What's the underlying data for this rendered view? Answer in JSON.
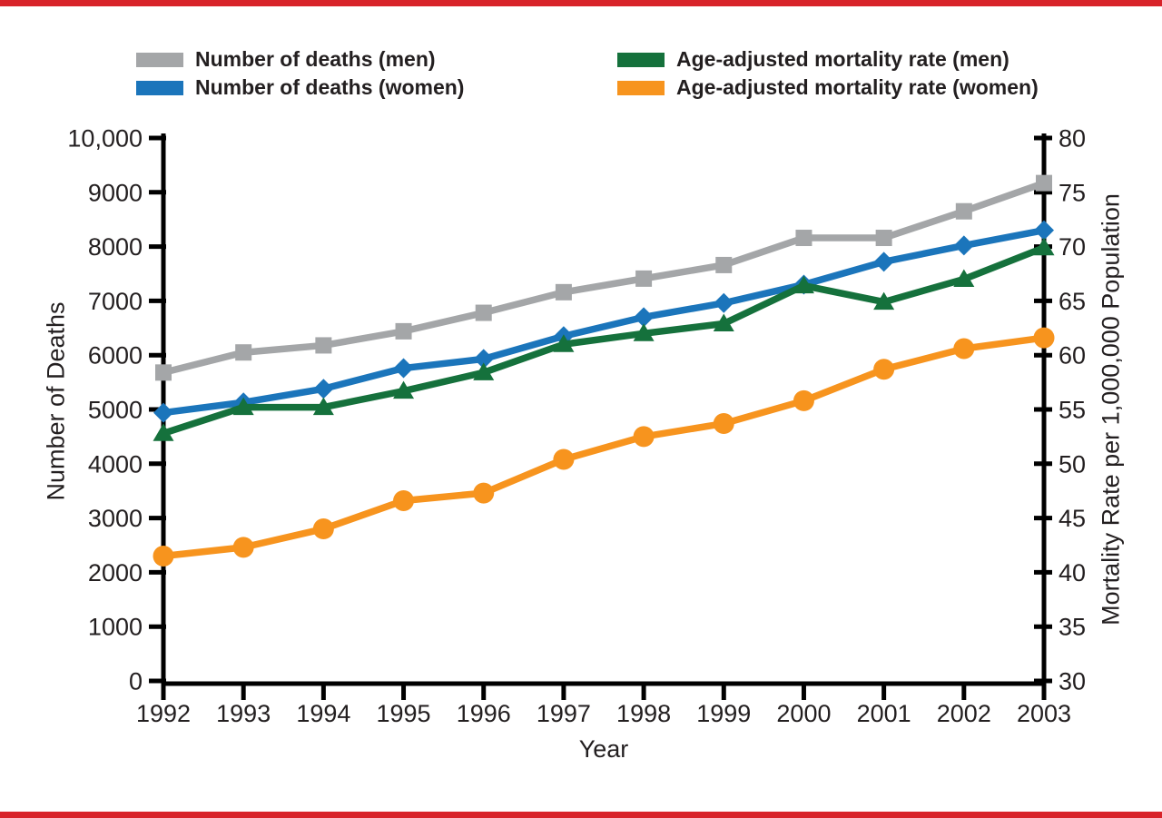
{
  "page": {
    "background": "#ffffff",
    "accent_color": "#d8232a"
  },
  "legend": {
    "items": [
      {
        "label": "Number of deaths (men)",
        "color": "#a4a6a8"
      },
      {
        "label": "Number of deaths (women)",
        "color": "#1b75bb"
      },
      {
        "label": "Age-adjusted mortality rate (men)",
        "color": "#15713c"
      },
      {
        "label": "Age-adjusted mortality rate (women)",
        "color": "#f7941e"
      }
    ]
  },
  "chart_data": {
    "type": "line",
    "title": "",
    "xlabel": "Year",
    "ylabel_left": "Number of Deaths",
    "ylabel_right": "Mortality Rate per 1,000,000 Population",
    "grid": false,
    "legend_position": "top",
    "x": [
      1992,
      1993,
      1994,
      1995,
      1996,
      1997,
      1998,
      1999,
      2000,
      2001,
      2002,
      2003
    ],
    "left_axis": {
      "min": 0,
      "max": 10000,
      "ticks": [
        0,
        1000,
        2000,
        3000,
        4000,
        5000,
        6000,
        7000,
        8000,
        9000,
        10000
      ],
      "labels": [
        "0",
        "1000",
        "2000",
        "3000",
        "4000",
        "5000",
        "6000",
        "7000",
        "8000",
        "9000",
        "10,000"
      ]
    },
    "right_axis": {
      "min": 30,
      "max": 80,
      "ticks": [
        30,
        35,
        40,
        45,
        50,
        55,
        60,
        65,
        70,
        75,
        80
      ],
      "labels": [
        "30",
        "35",
        "40",
        "45",
        "50",
        "55",
        "60",
        "65",
        "70",
        "75",
        "80"
      ]
    },
    "series": [
      {
        "id": "deaths-men",
        "name": "Number of deaths (men)",
        "axis": "left",
        "marker": "square",
        "color": "#a4a6a8",
        "values": [
          5680,
          6050,
          6180,
          6440,
          6780,
          7160,
          7410,
          7660,
          8160,
          8160,
          8650,
          9170
        ]
      },
      {
        "id": "deaths-women",
        "name": "Number of deaths (women)",
        "axis": "left",
        "marker": "diamond",
        "color": "#1b75bb",
        "values": [
          4940,
          5130,
          5380,
          5760,
          5930,
          6350,
          6700,
          6960,
          7300,
          7720,
          8020,
          8300
        ]
      },
      {
        "id": "rate-men",
        "name": "Age-adjusted mortality rate (men)",
        "axis": "right",
        "marker": "triangle",
        "color": "#15713c",
        "values": [
          52.8,
          55.2,
          55.2,
          56.7,
          58.4,
          61.0,
          62.0,
          62.9,
          66.4,
          64.9,
          67.0,
          69.9
        ]
      },
      {
        "id": "rate-women",
        "name": "Age-adjusted mortality rate (women)",
        "axis": "right",
        "marker": "circle",
        "color": "#f7941e",
        "values": [
          41.5,
          42.3,
          44.0,
          46.6,
          47.3,
          50.4,
          52.5,
          53.7,
          55.8,
          58.7,
          60.6,
          61.6
        ]
      }
    ]
  }
}
